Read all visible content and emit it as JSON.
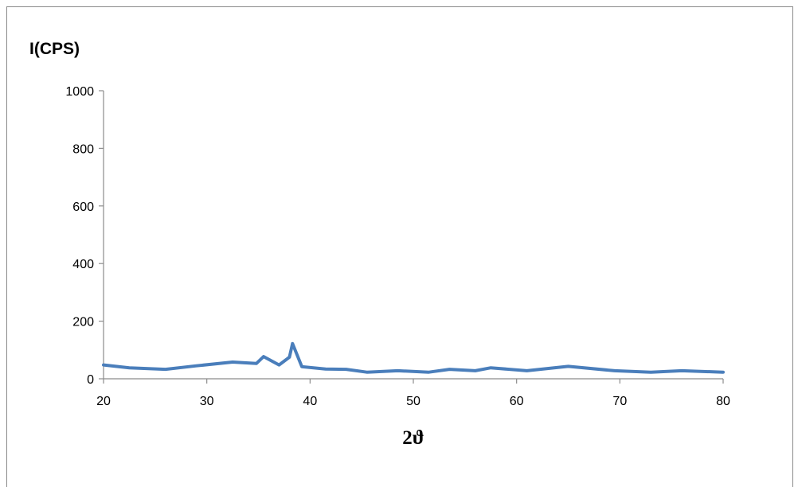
{
  "chart_data": {
    "type": "line",
    "title": "",
    "xlabel": "2ϑ",
    "ylabel": "I(CPS)",
    "xlim": [
      20,
      80
    ],
    "ylim": [
      0,
      1000
    ],
    "x_ticks": [
      20,
      30,
      40,
      50,
      60,
      70,
      80
    ],
    "y_ticks": [
      0,
      200,
      400,
      600,
      800,
      1000
    ],
    "grid": false,
    "legend": "none",
    "series": [
      {
        "color": "#4a7ebb",
        "x": [
          20,
          22.5,
          26,
          29,
          32.5,
          34.8,
          35.5,
          37,
          38,
          38.3,
          39.2,
          41.5,
          43.5,
          45.5,
          48.5,
          51.5,
          53.5,
          56,
          57.5,
          61,
          65,
          69.5,
          73,
          76,
          80
        ],
        "y": [
          48,
          38,
          33,
          45,
          58,
          53,
          77,
          48,
          75,
          122,
          42,
          34,
          33,
          23,
          28,
          23,
          33,
          28,
          38,
          28,
          43,
          28,
          23,
          28,
          23
        ]
      }
    ]
  }
}
